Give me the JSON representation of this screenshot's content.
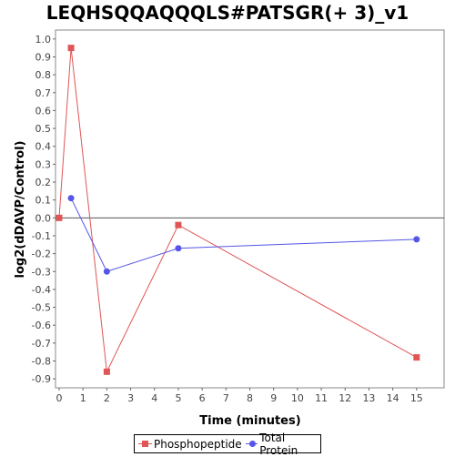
{
  "chart_data": {
    "type": "line",
    "title": "LEQHSQQAQQQLS#PATSGR(+ 3)_v1",
    "xlabel": "Time (minutes)",
    "ylabel": "log2(dDAVP/Control)",
    "xlim": [
      0,
      16
    ],
    "ylim": [
      -0.95,
      1.05
    ],
    "xticks": [
      0,
      1,
      2,
      3,
      4,
      5,
      6,
      7,
      8,
      9,
      10,
      11,
      12,
      13,
      14,
      15
    ],
    "yticks": [
      1.0,
      0.9,
      0.8,
      0.7,
      0.6,
      0.5,
      0.4,
      0.3,
      0.2,
      0.1,
      0.0,
      -0.1,
      -0.2,
      -0.3,
      -0.4,
      -0.5,
      -0.6,
      -0.7,
      -0.8,
      -0.9
    ],
    "ytick_labels": [
      "1.0",
      "0.9",
      "0.8",
      "0.7",
      "0.6",
      "0.5",
      "0.4",
      "0.3",
      "0.2",
      "0.1",
      "0.0",
      "-0.1",
      "-0.2",
      "-0.3",
      "-0.4",
      "-0.5",
      "-0.6",
      "-0.7",
      "-0.8",
      "-0.9"
    ],
    "zero_line": true,
    "grid": false,
    "legend_position": "bottom",
    "series": [
      {
        "name": "Phosphopeptide",
        "color": "#e05555",
        "marker": "square",
        "x": [
          0,
          0.5,
          2,
          5,
          15
        ],
        "y": [
          0.0,
          0.95,
          -0.86,
          -0.04,
          -0.78
        ]
      },
      {
        "name": "Total Protein",
        "color": "#5555e8",
        "marker": "circle",
        "x": [
          0.5,
          2,
          5,
          15
        ],
        "y": [
          0.11,
          -0.3,
          -0.17,
          -0.12
        ]
      }
    ]
  }
}
